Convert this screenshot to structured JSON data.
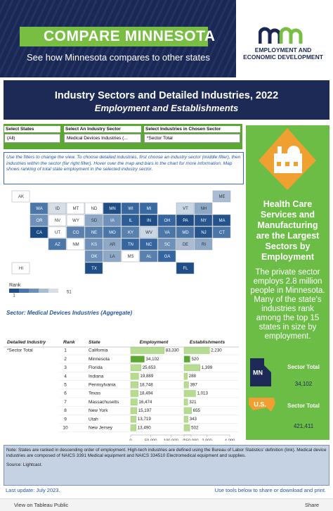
{
  "header": {
    "title": "COMPARE MINNESOTA",
    "subtitle": "See how Minnesota compares to other states",
    "org_line1": "EMPLOYMENT AND",
    "org_line2": "ECONOMIC DEVELOPMENT"
  },
  "title_box": {
    "title": "Industry Sectors and Detailed Industries, 2022",
    "subtitle": "Employment and Establishments"
  },
  "filters": [
    {
      "label": "Select States",
      "value": "(All)"
    },
    {
      "label": "Select An Industry Sector",
      "value": "Medical Devices Industries (..."
    },
    {
      "label": "Select Industries in Chosen Sector",
      "value": "*Sector Total"
    }
  ],
  "instructions": "Use the filters to change the view. To choose detailed industries, first choose an industry sector (middle filter), then industries within the sector (far right filter). Hover over the map and bars in the chart for more information. Map shows ranking of total state employment in the selected industry sector.",
  "map": {
    "states": [
      {
        "label": "AK",
        "color": "#ffffff"
      },
      {
        "label": "ME",
        "color": "#a9bcd3"
      },
      {
        "label": "WA",
        "color": "#4a76a8"
      },
      {
        "label": "ID",
        "color": "#d8dee6"
      },
      {
        "label": "MT",
        "color": "#ffffff"
      },
      {
        "label": "ND",
        "color": "#ffffff"
      },
      {
        "label": "MN",
        "color": "#1f4e86"
      },
      {
        "label": "WI",
        "color": "#3566a0"
      },
      {
        "label": "MI",
        "color": "#3a6aa3"
      },
      {
        "label": "VT",
        "color": "#c9d6e3"
      },
      {
        "label": "NH",
        "color": "#8ea9c8"
      },
      {
        "label": "OR",
        "color": "#6f90b8"
      },
      {
        "label": "NV",
        "color": "#ffffff"
      },
      {
        "label": "WY",
        "color": "#ffffff"
      },
      {
        "label": "SD",
        "color": "#8ea9c8"
      },
      {
        "label": "IA",
        "color": "#6f90b8"
      },
      {
        "label": "IL",
        "color": "#2c5d97"
      },
      {
        "label": "IN",
        "color": "#1f4e86"
      },
      {
        "label": "OH",
        "color": "#3566a0"
      },
      {
        "label": "PA",
        "color": "#1f4e86"
      },
      {
        "label": "NY",
        "color": "#27568f"
      },
      {
        "label": "MA",
        "color": "#24538c"
      },
      {
        "label": "CA",
        "color": "#1a4a82"
      },
      {
        "label": "UT",
        "color": "#ffffff"
      },
      {
        "label": "CO",
        "color": "#5a80ad"
      },
      {
        "label": "NE",
        "color": "#5a80ad"
      },
      {
        "label": "MO",
        "color": "#4a76a8"
      },
      {
        "label": "KY",
        "color": "#5a80ad"
      },
      {
        "label": "WV",
        "color": "#c9d6e3"
      },
      {
        "label": "VA",
        "color": "#4a76a8"
      },
      {
        "label": "MD",
        "color": "#4a76a8"
      },
      {
        "label": "NJ",
        "color": "#27568f"
      },
      {
        "label": "CT",
        "color": "#4a76a8"
      },
      {
        "label": "AZ",
        "color": "#4a76a8"
      },
      {
        "label": "NM",
        "color": "#ffffff"
      },
      {
        "label": "KS",
        "color": "#6f90b8"
      },
      {
        "label": "AR",
        "color": "#8ea9c8"
      },
      {
        "label": "TN",
        "color": "#3566a0"
      },
      {
        "label": "NC",
        "color": "#3566a0"
      },
      {
        "label": "SC",
        "color": "#6f90b8"
      },
      {
        "label": "DE",
        "color": "#a9bcd3"
      },
      {
        "label": "RI",
        "color": "#8ea9c8"
      },
      {
        "label": "OK",
        "color": "#6f90b8"
      },
      {
        "label": "LA",
        "color": "#8ea9c8"
      },
      {
        "label": "MS",
        "color": "#ffffff"
      },
      {
        "label": "AL",
        "color": "#5a80ad"
      },
      {
        "label": "GA",
        "color": "#3566a0"
      },
      {
        "label": "HI",
        "color": "#ffffff"
      },
      {
        "label": "TX",
        "color": "#1f4e86"
      },
      {
        "label": "FL",
        "color": "#1f4e86"
      }
    ],
    "legend": {
      "title": "Rank",
      "min": 1,
      "max": 51,
      "colors": [
        "#1f4e86",
        "#4a76a8",
        "#6f90b8",
        "#a9bcd3",
        "#d8dee6"
      ]
    }
  },
  "side_panel": {
    "headline": "Health Care Services and Manufacturing are the Largest Sectors by Employment",
    "body": "The private sector employs 2.8 million people in Minnesota. Many of the state's industries rank among the top 15 states in size by employment.",
    "mn": {
      "badge": "MN",
      "label": "Sector Total",
      "value": "34,102"
    },
    "us": {
      "badge": "U.S.",
      "label": "Sector Total",
      "value": "421,411"
    }
  },
  "chart_data": {
    "type": "table-bar",
    "title": "Sector: Medical Devices Industries (Aggregate)",
    "columns": [
      "Detailed Industry",
      "Rank",
      "State",
      "Employment",
      "Establishments"
    ],
    "detailed_industry": "*Sector Total",
    "ranks": [
      1,
      2,
      3,
      4,
      5,
      6,
      7,
      8,
      9,
      10
    ],
    "categories": [
      "California",
      "Minnesota",
      "Florida",
      "Indiana",
      "Pennsylvania",
      "Texas",
      "Massachusetts",
      "New York",
      "Utah",
      "New Jersey"
    ],
    "highlight": 1,
    "series": [
      {
        "name": "Employment",
        "color": "#b5dc8f",
        "highlight_color": "#5aa832",
        "values": [
          83330,
          34102,
          25653,
          19889,
          18748,
          18494,
          16474,
          15197,
          13719,
          13490
        ],
        "value_labels": [
          "83,330",
          "34,102",
          "25,653",
          "19,889",
          "18,748",
          "18,494",
          "16,474",
          "15,197",
          "13,719",
          "13,490"
        ],
        "xlim": [
          0,
          150000
        ],
        "xticks": [
          0,
          {
            "value": 50000,
            "label": "50,000"
          },
          {
            "value": 100000,
            "label": "100,000"
          },
          {
            "value": 150000,
            "label": "150,000"
          }
        ]
      },
      {
        "name": "Establishments",
        "color": "#b5dc8f",
        "highlight_color": "#5aa832",
        "values": [
          2230,
          520,
          1399,
          288,
          397,
          1013,
          321,
          655,
          343,
          502
        ],
        "value_labels": [
          "2,230",
          "520",
          "1,399",
          "288",
          "397",
          "1,013",
          "321",
          "655",
          "343",
          "502"
        ],
        "xlim": [
          0,
          4000
        ],
        "xticks": [
          0,
          {
            "value": 2000,
            "label": "2,000"
          },
          {
            "value": 4000,
            "label": "4,000"
          }
        ]
      }
    ]
  },
  "note": {
    "text": "Note: States are ranked in descending order of employment. High-tech industries are defined using the Bureau of Labor Statistics' definition (link). Medical device industries are composed of NAICS 3391 Medical equipment and NAICS 334510 Electromedical equipment and supplies.",
    "source": "Source: Lightcast."
  },
  "footer": {
    "last_update": "Last update: July 2023.",
    "tools": "Use tools below to share or download and print."
  },
  "toolbar": {
    "view": "View on Tableau Public",
    "share": "Share"
  }
}
